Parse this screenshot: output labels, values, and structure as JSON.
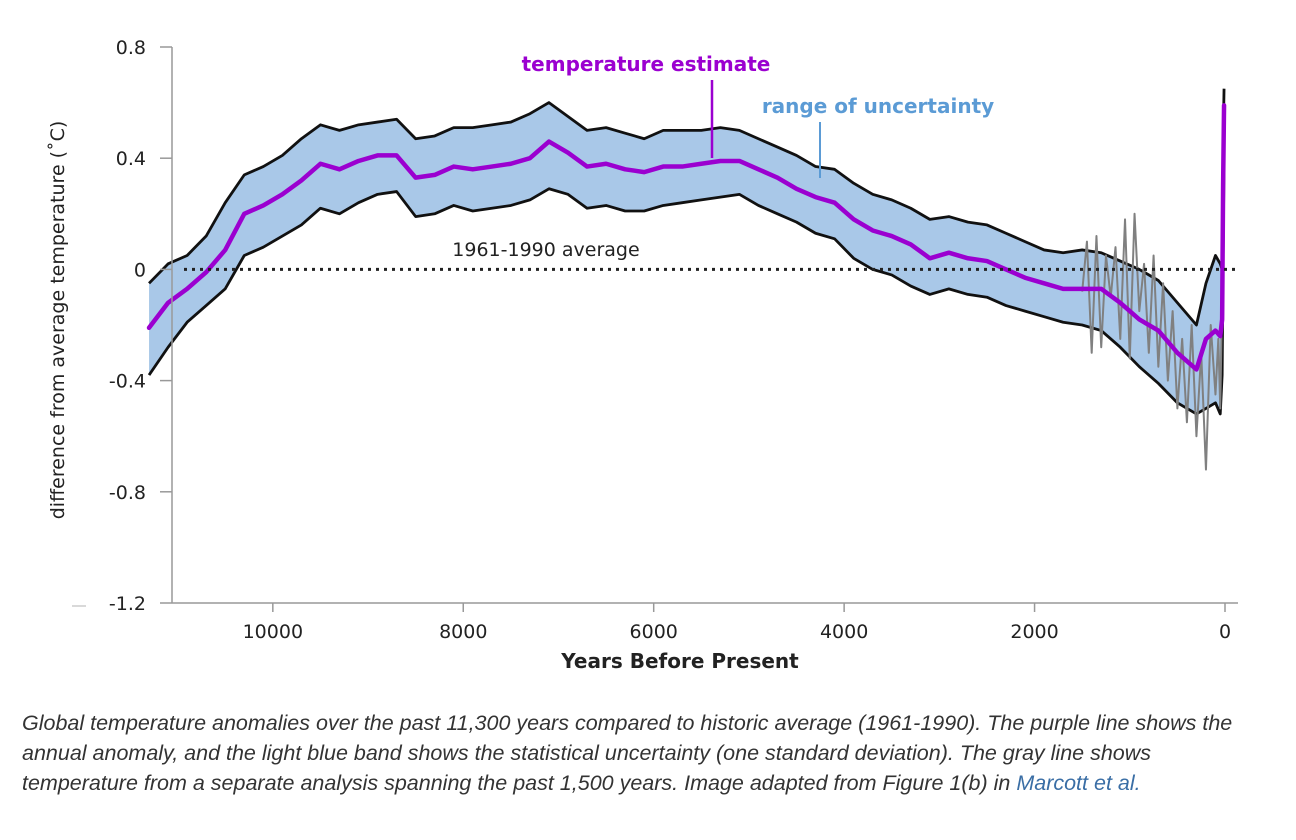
{
  "chart_data": {
    "type": "line",
    "title": "",
    "xlabel": "Years Before Present",
    "ylabel": "difference from average temperature (˚C)",
    "xlim": [
      11500,
      0
    ],
    "ylim": [
      -1.2,
      0.8
    ],
    "x_ticks": [
      10000,
      8000,
      6000,
      4000,
      2000,
      0
    ],
    "x_tick_labels": [
      "10000",
      "8000",
      "6000",
      "4000",
      "2000",
      "0"
    ],
    "y_ticks": [
      0.8,
      0.4,
      0,
      -0.4,
      -0.8,
      -1.2
    ],
    "y_tick_labels": [
      "0.8",
      "0.4",
      "0",
      "-0.4",
      "-0.8",
      "-1.2"
    ],
    "colors": {
      "estimate": "#9b00d0",
      "band_fill": "#a9c8e8",
      "band_edge": "#111111",
      "gray_series": "#808080",
      "uncertainty_label": "#5b9bd5",
      "reference_line": "#222222"
    },
    "series": [
      {
        "name": "temperature estimate",
        "x": [
          11300,
          11100,
          10900,
          10700,
          10500,
          10300,
          10100,
          9900,
          9700,
          9500,
          9300,
          9100,
          8900,
          8700,
          8500,
          8300,
          8100,
          7900,
          7700,
          7500,
          7300,
          7100,
          6900,
          6700,
          6500,
          6300,
          6100,
          5900,
          5700,
          5500,
          5300,
          5100,
          4900,
          4700,
          4500,
          4300,
          4100,
          3900,
          3700,
          3500,
          3300,
          3100,
          2900,
          2700,
          2500,
          2300,
          2100,
          1900,
          1700,
          1500,
          1300,
          1100,
          900,
          700,
          500,
          300,
          200,
          100,
          50,
          30,
          20,
          10
        ],
        "y": [
          -0.21,
          -0.12,
          -0.07,
          -0.01,
          0.07,
          0.2,
          0.23,
          0.27,
          0.32,
          0.38,
          0.36,
          0.39,
          0.41,
          0.41,
          0.33,
          0.34,
          0.37,
          0.36,
          0.37,
          0.38,
          0.4,
          0.46,
          0.42,
          0.37,
          0.38,
          0.36,
          0.35,
          0.37,
          0.37,
          0.38,
          0.39,
          0.39,
          0.36,
          0.33,
          0.29,
          0.26,
          0.24,
          0.18,
          0.14,
          0.12,
          0.09,
          0.04,
          0.06,
          0.04,
          0.03,
          0.0,
          -0.03,
          -0.05,
          -0.07,
          -0.07,
          -0.07,
          -0.12,
          -0.18,
          -0.22,
          -0.3,
          -0.36,
          -0.25,
          -0.22,
          -0.24,
          -0.18,
          0.3,
          0.59
        ]
      },
      {
        "name": "range of uncertainty",
        "x": [
          11300,
          11100,
          10900,
          10700,
          10500,
          10300,
          10100,
          9900,
          9700,
          9500,
          9300,
          9100,
          8900,
          8700,
          8500,
          8300,
          8100,
          7900,
          7700,
          7500,
          7300,
          7100,
          6900,
          6700,
          6500,
          6300,
          6100,
          5900,
          5700,
          5500,
          5300,
          5100,
          4900,
          4700,
          4500,
          4300,
          4100,
          3900,
          3700,
          3500,
          3300,
          3100,
          2900,
          2700,
          2500,
          2300,
          2100,
          1900,
          1700,
          1500,
          1300,
          1100,
          900,
          700,
          500,
          300,
          200,
          100,
          50,
          30,
          20,
          10
        ],
        "upper": [
          -0.05,
          0.02,
          0.05,
          0.12,
          0.24,
          0.34,
          0.37,
          0.41,
          0.47,
          0.52,
          0.5,
          0.52,
          0.53,
          0.54,
          0.47,
          0.48,
          0.51,
          0.51,
          0.52,
          0.53,
          0.56,
          0.6,
          0.55,
          0.5,
          0.51,
          0.49,
          0.47,
          0.5,
          0.5,
          0.5,
          0.51,
          0.5,
          0.47,
          0.44,
          0.41,
          0.37,
          0.36,
          0.31,
          0.27,
          0.25,
          0.22,
          0.18,
          0.19,
          0.17,
          0.16,
          0.13,
          0.1,
          0.07,
          0.06,
          0.07,
          0.06,
          0.03,
          0.0,
          -0.04,
          -0.12,
          -0.2,
          -0.05,
          0.05,
          0.02,
          0.0,
          0.45,
          0.65
        ],
        "lower": [
          -0.38,
          -0.28,
          -0.19,
          -0.13,
          -0.07,
          0.05,
          0.08,
          0.12,
          0.16,
          0.22,
          0.2,
          0.24,
          0.27,
          0.28,
          0.19,
          0.2,
          0.23,
          0.21,
          0.22,
          0.23,
          0.25,
          0.29,
          0.27,
          0.22,
          0.23,
          0.21,
          0.21,
          0.23,
          0.24,
          0.25,
          0.26,
          0.27,
          0.23,
          0.2,
          0.17,
          0.13,
          0.11,
          0.04,
          0.0,
          -0.02,
          -0.06,
          -0.09,
          -0.07,
          -0.09,
          -0.1,
          -0.13,
          -0.15,
          -0.17,
          -0.19,
          -0.2,
          -0.22,
          -0.28,
          -0.35,
          -0.41,
          -0.48,
          -0.52,
          -0.5,
          -0.48,
          -0.52,
          -0.38,
          0.05,
          0.4
        ]
      },
      {
        "name": "past 1,500 years (separate analysis)",
        "x": [
          1500,
          1450,
          1400,
          1350,
          1300,
          1250,
          1200,
          1150,
          1100,
          1050,
          1000,
          950,
          900,
          850,
          800,
          750,
          700,
          650,
          600,
          550,
          500,
          450,
          400,
          350,
          300,
          250,
          200,
          150,
          100,
          70,
          50,
          30,
          20
        ],
        "y": [
          -0.08,
          0.1,
          -0.3,
          0.12,
          -0.28,
          0.05,
          -0.1,
          0.08,
          -0.25,
          0.18,
          -0.32,
          0.2,
          -0.15,
          0.02,
          -0.3,
          0.05,
          -0.35,
          -0.05,
          -0.4,
          -0.15,
          -0.5,
          -0.25,
          -0.55,
          -0.2,
          -0.6,
          -0.3,
          -0.72,
          -0.2,
          -0.45,
          -0.25,
          -0.5,
          -0.1,
          0.35
        ]
      }
    ],
    "annotations": [
      {
        "text": "temperature estimate",
        "color": "purple"
      },
      {
        "text": "range of uncertainty",
        "color": "blue"
      },
      {
        "text": "1961-1990 average",
        "color": "black",
        "y": 0
      }
    ],
    "grid": false,
    "legend": "none"
  },
  "caption": {
    "text": "Global temperature anomalies over the past 11,300 years compared to historic average (1961-1990). The purple line shows the annual anomaly, and the light blue band shows the statistical uncertainty (one standard deviation). The gray line shows temperature from a separate analysis spanning the past 1,500 years. Image adapted from Figure 1(b) in ",
    "link_text": "Marcott et al."
  }
}
